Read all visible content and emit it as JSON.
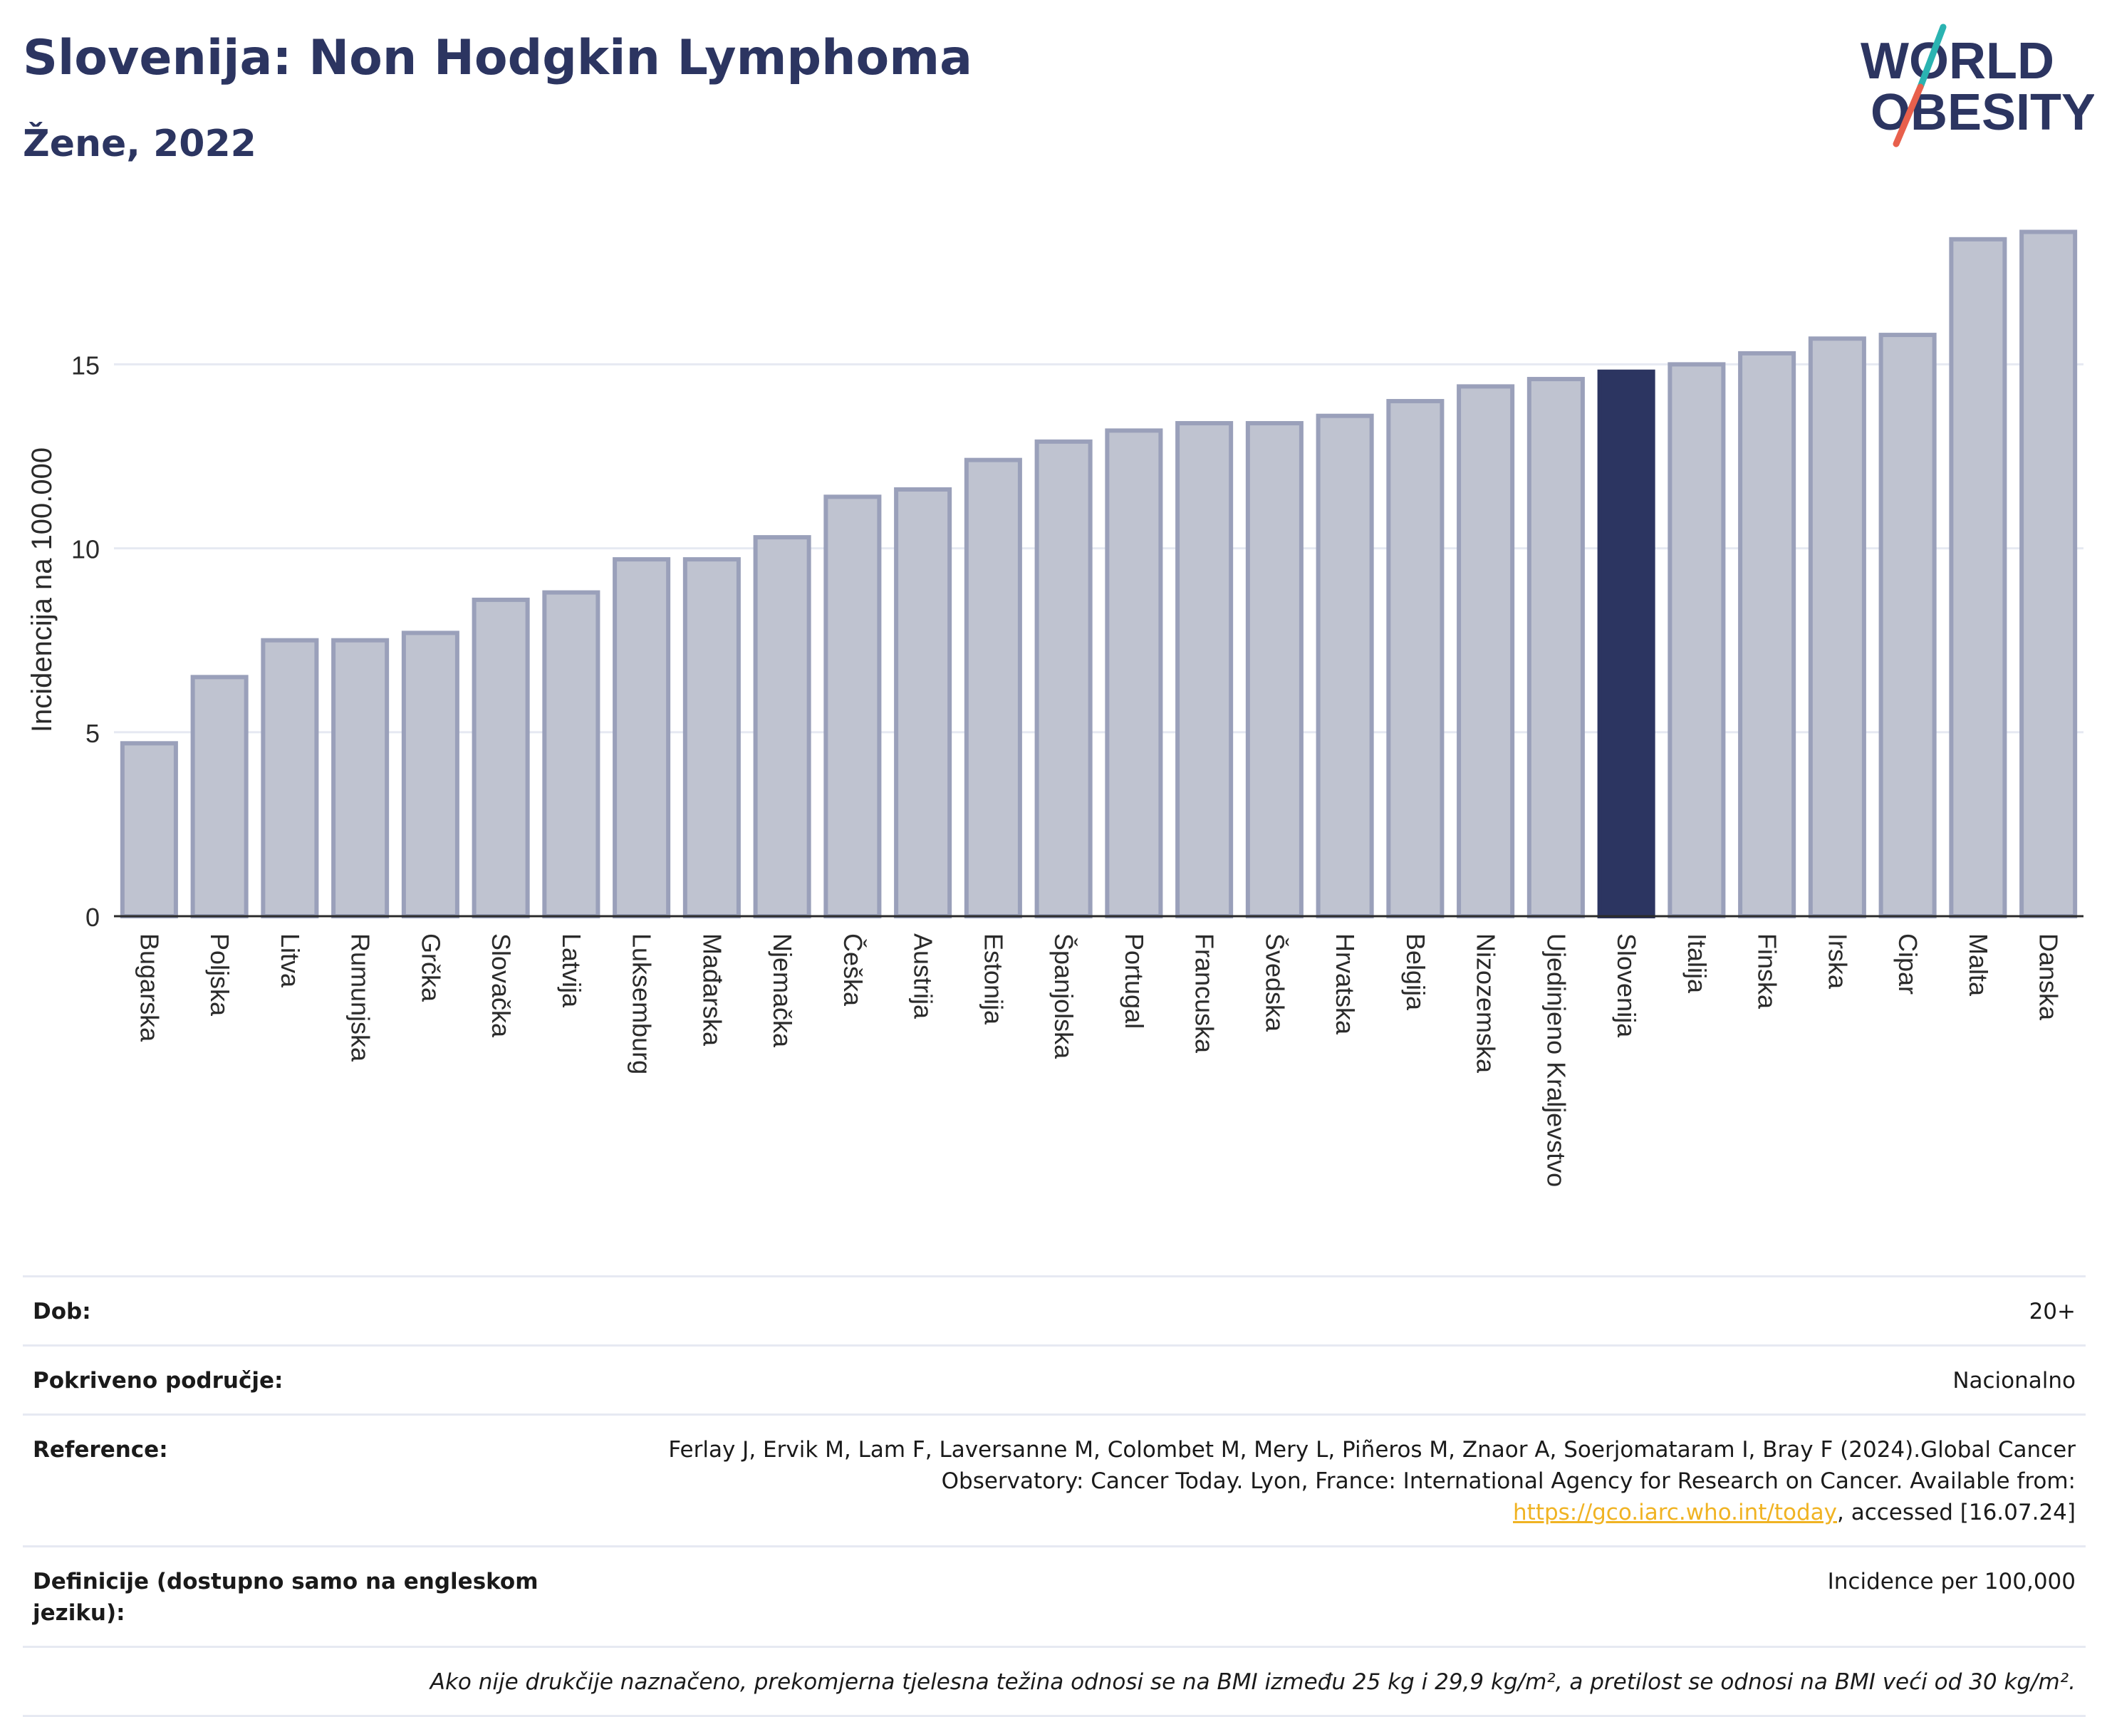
{
  "header": {
    "title": "Slovenija: Non Hodgkin Lymphoma",
    "subtitle": "Žene, 2022"
  },
  "logo": {
    "line1": "WORLD",
    "line2": "OBESITY"
  },
  "colors": {
    "bar_default": "#bfc3d0",
    "bar_border": "#9aa0ba",
    "bar_highlight": "#2c3561",
    "grid": "#e6e9f2",
    "title": "#2c3561",
    "logo_slash_top": "#2ab3b1",
    "logo_slash_bottom": "#e8604c"
  },
  "chart_data": {
    "type": "bar",
    "title": "Slovenija: Non Hodgkin Lymphoma",
    "subtitle": "Žene, 2022",
    "xlabel": "",
    "ylabel": "Incidencija na 100.000",
    "ylim": [
      0,
      18.9
    ],
    "yticks": [
      0,
      5,
      10,
      15
    ],
    "grid": true,
    "highlight": "Slovenija",
    "categories": [
      "Bugarska",
      "Poljska",
      "Litva",
      "Rumunjska",
      "Grčka",
      "Slovačka",
      "Latvija",
      "Luksemburg",
      "Mađarska",
      "Njemačka",
      "Češka",
      "Austrija",
      "Estonija",
      "Španjolska",
      "Portugal",
      "Francuska",
      "Švedska",
      "Hrvatska",
      "Belgija",
      "Nizozemska",
      "Ujedinjeno Kraljevstvo",
      "Slovenija",
      "Italija",
      "Finska",
      "Irska",
      "Cipar",
      "Malta",
      "Danska"
    ],
    "values": [
      4.7,
      6.5,
      7.5,
      7.5,
      7.7,
      8.6,
      8.8,
      9.7,
      9.7,
      10.3,
      11.4,
      11.6,
      12.4,
      12.9,
      13.2,
      13.4,
      13.4,
      13.6,
      14.0,
      14.4,
      14.6,
      14.8,
      15.0,
      15.3,
      15.7,
      15.8,
      18.4,
      18.6
    ]
  },
  "info": {
    "rows": [
      {
        "label": "Dob:",
        "value": "20+"
      },
      {
        "label": "Pokriveno područje:",
        "value": "Nacionalno"
      },
      {
        "label": "Reference:",
        "value_before": "Ferlay J, Ervik M, Lam F, Laversanne M, Colombet M, Mery L, Piñeros M, Znaor A, Soerjomataram I, Bray F (2024).Global Cancer Observatory: Cancer Today. Lyon, France: International Agency for Research on Cancer. Available from: ",
        "link": "https://gco.iarc.who.int/today",
        "value_after": ", accessed [16.07.24]"
      },
      {
        "label": "Definicije (dostupno samo na engleskom jeziku):",
        "value": "Incidence per 100,000"
      }
    ],
    "note": "Ako nije drukčije naznačeno, prekomjerna tjelesna težina odnosi se na BMI između 25 kg i 29,9 kg/m², a pretilost se odnosi na BMI veći od 30 kg/m²."
  }
}
